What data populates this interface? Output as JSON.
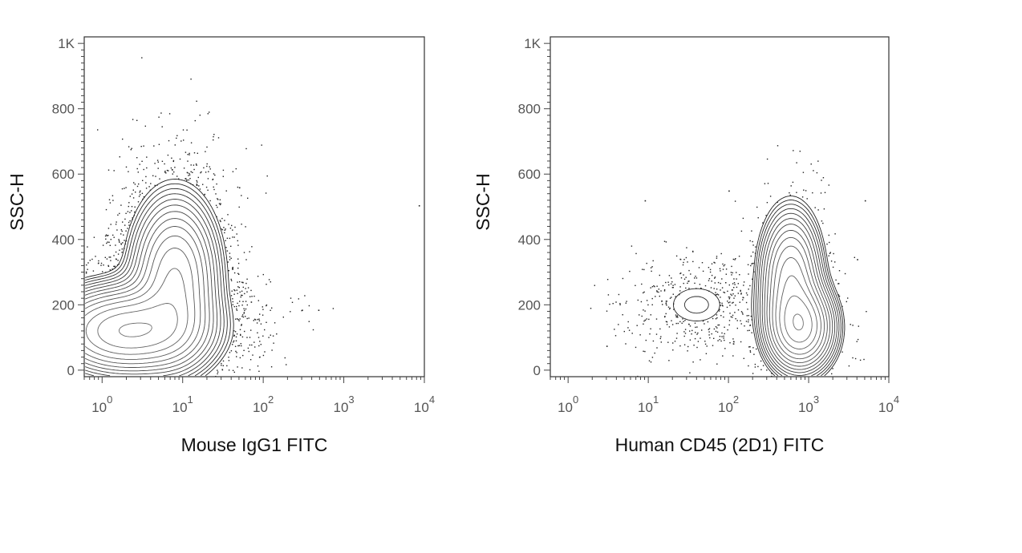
{
  "chart_data": [
    {
      "type": "scatter",
      "subtype": "flow-cytometry contour plot with outlier dots",
      "xlabel": "Mouse IgG1 FITC",
      "ylabel": "SSC-H",
      "xscale": "log",
      "xlim": [
        0.6,
        10000
      ],
      "ylim": [
        -20,
        1020
      ],
      "xticks": [
        {
          "value": 1,
          "base": "10",
          "exp": "0"
        },
        {
          "value": 10,
          "base": "10",
          "exp": "1"
        },
        {
          "value": 100,
          "base": "10",
          "exp": "2"
        },
        {
          "value": 1000,
          "base": "10",
          "exp": "3"
        },
        {
          "value": 10000,
          "base": "10",
          "exp": "4"
        }
      ],
      "yticks": [
        {
          "value": 0,
          "label": "0"
        },
        {
          "value": 200,
          "label": "200"
        },
        {
          "value": 400,
          "label": "400"
        },
        {
          "value": 600,
          "label": "600"
        },
        {
          "value": 800,
          "label": "800"
        },
        {
          "value": 1000,
          "label": "1K"
        }
      ],
      "populations": [
        {
          "center_x": 2,
          "center_y": 120,
          "spread_logx": 0.5,
          "spread_y": 70,
          "weight": 0.62
        },
        {
          "center_x": 8,
          "center_y": 280,
          "spread_logx": 0.28,
          "spread_y": 130,
          "weight": 0.38
        }
      ],
      "outliers": [
        {
          "x": 50,
          "y": 560
        },
        {
          "x": 55,
          "y": 270
        },
        {
          "x": 70,
          "y": 210
        },
        {
          "x": 300,
          "y": 185
        },
        {
          "x": 480,
          "y": 185
        },
        {
          "x": 8500,
          "y": 505
        }
      ],
      "grid": false,
      "legend": "none"
    },
    {
      "type": "scatter",
      "subtype": "flow-cytometry contour plot with outlier dots",
      "xlabel": "Human CD45 (2D1) FITC",
      "ylabel": "SSC-H",
      "xscale": "log",
      "xlim": [
        0.6,
        10000
      ],
      "ylim": [
        -20,
        1020
      ],
      "xticks": [
        {
          "value": 1,
          "base": "10",
          "exp": "0"
        },
        {
          "value": 10,
          "base": "10",
          "exp": "1"
        },
        {
          "value": 100,
          "base": "10",
          "exp": "2"
        },
        {
          "value": 1000,
          "base": "10",
          "exp": "3"
        },
        {
          "value": 10000,
          "base": "10",
          "exp": "4"
        }
      ],
      "yticks": [
        {
          "value": 0,
          "label": "0"
        },
        {
          "value": 200,
          "label": "200"
        },
        {
          "value": 400,
          "label": "400"
        },
        {
          "value": 600,
          "label": "600"
        },
        {
          "value": 800,
          "label": "800"
        },
        {
          "value": 1000,
          "label": "1K"
        }
      ],
      "populations": [
        {
          "center_x": 800,
          "center_y": 130,
          "spread_logx": 0.22,
          "spread_y": 70,
          "weight": 0.6
        },
        {
          "center_x": 600,
          "center_y": 280,
          "spread_logx": 0.2,
          "spread_y": 110,
          "weight": 0.4
        },
        {
          "center_x": 40,
          "center_y": 200,
          "spread_logx": 0.35,
          "spread_y": 60,
          "weight": 0.04
        }
      ],
      "outliers": [
        {
          "x": 9,
          "y": 520
        },
        {
          "x": 3,
          "y": 75
        },
        {
          "x": 9,
          "y": 155
        },
        {
          "x": 100,
          "y": 550
        },
        {
          "x": 5000,
          "y": 520
        },
        {
          "x": 4000,
          "y": 340
        }
      ],
      "grid": false,
      "legend": "none"
    }
  ]
}
